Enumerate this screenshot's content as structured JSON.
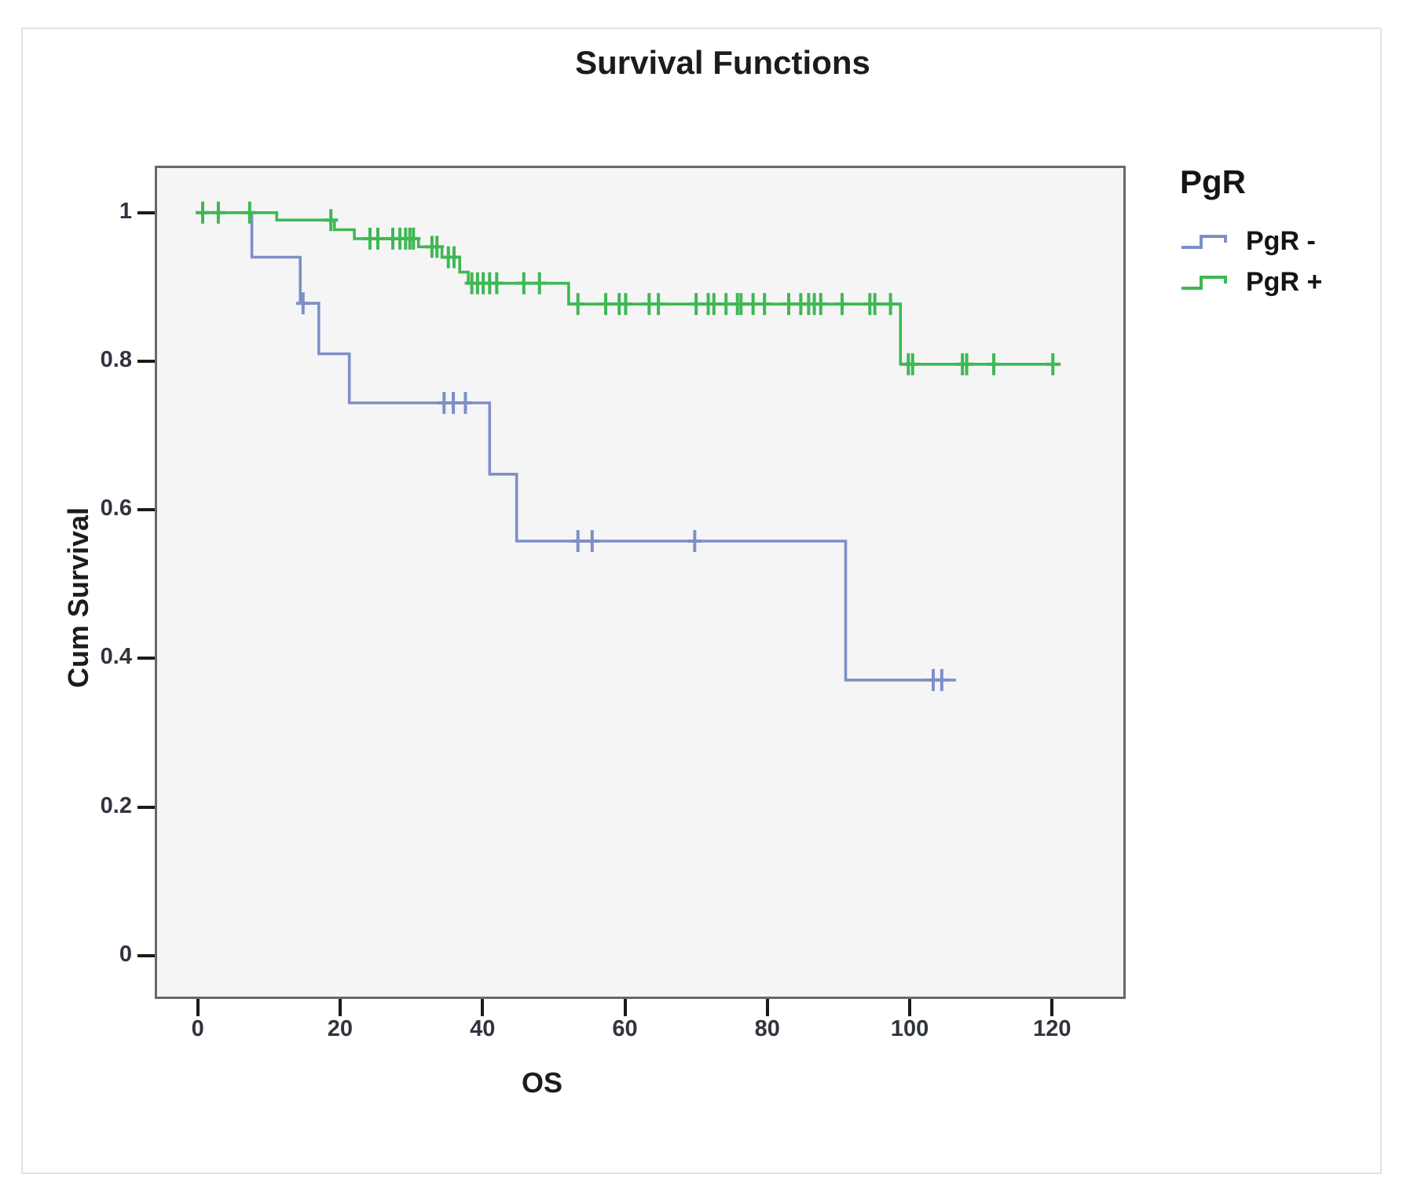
{
  "chart": {
    "title": "Survival Functions",
    "xlabel": "OS",
    "ylabel": "Cum Survival"
  },
  "chart_data": {
    "type": "line",
    "subtype": "kaplan-meier-step-survival",
    "title": "Survival Functions",
    "xlabel": "OS",
    "ylabel": "Cum Survival",
    "xlim": [
      -5.7,
      130
    ],
    "ylim": [
      -0.055,
      1.06
    ],
    "x_ticks": [
      0,
      20,
      40,
      60,
      80,
      100,
      120
    ],
    "y_ticks": [
      0,
      0.2,
      0.4,
      0.6,
      0.8,
      1
    ],
    "grid": false,
    "plot_background": "#f6f5f5",
    "legend": {
      "title": "PgR",
      "position": "right",
      "entries": [
        {
          "label": "PgR -",
          "color": "#7d8fc9"
        },
        {
          "label": "PgR +",
          "color": "#3eb854"
        }
      ]
    },
    "series": [
      {
        "name": "PgR -",
        "color": "#7d8fc9",
        "start": [
          0,
          1.0
        ],
        "steps": [
          [
            7.6,
            0.94
          ],
          [
            14.4,
            0.878
          ],
          [
            17,
            0.81
          ],
          [
            21.3,
            0.744
          ],
          [
            41,
            0.648
          ],
          [
            44.8,
            0.558
          ],
          [
            91,
            0.371
          ]
        ],
        "end_time": 106.5,
        "censors": [
          [
            14.8,
            0.878
          ],
          [
            34.6,
            0.744
          ],
          [
            35.9,
            0.744
          ],
          [
            37.6,
            0.744
          ],
          [
            53.4,
            0.558
          ],
          [
            55.4,
            0.558
          ],
          [
            69.8,
            0.558
          ],
          [
            103.3,
            0.371
          ],
          [
            104.5,
            0.371
          ]
        ]
      },
      {
        "name": "PgR +",
        "color": "#3eb854",
        "start": [
          0,
          1.0
        ],
        "steps": [
          [
            11.1,
            0.99
          ],
          [
            19.2,
            0.977
          ],
          [
            22,
            0.965
          ],
          [
            31,
            0.954
          ],
          [
            34.3,
            0.94
          ],
          [
            36.8,
            0.92
          ],
          [
            38,
            0.905
          ],
          [
            52.1,
            0.877
          ],
          [
            98.7,
            0.796
          ]
        ],
        "end_time": 121.2,
        "censors": [
          [
            0.7,
            1.0
          ],
          [
            2.9,
            1.0
          ],
          [
            7.3,
            1.0
          ],
          [
            18.7,
            0.99
          ],
          [
            24.2,
            0.965
          ],
          [
            25.3,
            0.965
          ],
          [
            27.4,
            0.965
          ],
          [
            28.4,
            0.965
          ],
          [
            29.2,
            0.965
          ],
          [
            29.8,
            0.965
          ],
          [
            30.3,
            0.965
          ],
          [
            32.9,
            0.954
          ],
          [
            33.6,
            0.954
          ],
          [
            35.2,
            0.94
          ],
          [
            36.0,
            0.94
          ],
          [
            38.5,
            0.905
          ],
          [
            39.3,
            0.905
          ],
          [
            40.1,
            0.905
          ],
          [
            41.0,
            0.905
          ],
          [
            42.0,
            0.905
          ],
          [
            45.8,
            0.905
          ],
          [
            48.0,
            0.905
          ],
          [
            53.4,
            0.877
          ],
          [
            57.3,
            0.877
          ],
          [
            59.2,
            0.877
          ],
          [
            60.1,
            0.877
          ],
          [
            63.4,
            0.877
          ],
          [
            64.7,
            0.877
          ],
          [
            70.0,
            0.877
          ],
          [
            71.7,
            0.877
          ],
          [
            72.5,
            0.877
          ],
          [
            74.2,
            0.877
          ],
          [
            75.8,
            0.877
          ],
          [
            76.3,
            0.877
          ],
          [
            78.0,
            0.877
          ],
          [
            79.6,
            0.877
          ],
          [
            83.0,
            0.877
          ],
          [
            84.7,
            0.877
          ],
          [
            85.8,
            0.877
          ],
          [
            86.6,
            0.877
          ],
          [
            87.5,
            0.877
          ],
          [
            90.5,
            0.877
          ],
          [
            94.4,
            0.877
          ],
          [
            95.1,
            0.877
          ],
          [
            97.3,
            0.877
          ],
          [
            99.8,
            0.796
          ],
          [
            100.4,
            0.796
          ],
          [
            107.4,
            0.796
          ],
          [
            108.0,
            0.796
          ],
          [
            111.8,
            0.796
          ],
          [
            120.1,
            0.796
          ]
        ]
      }
    ]
  }
}
